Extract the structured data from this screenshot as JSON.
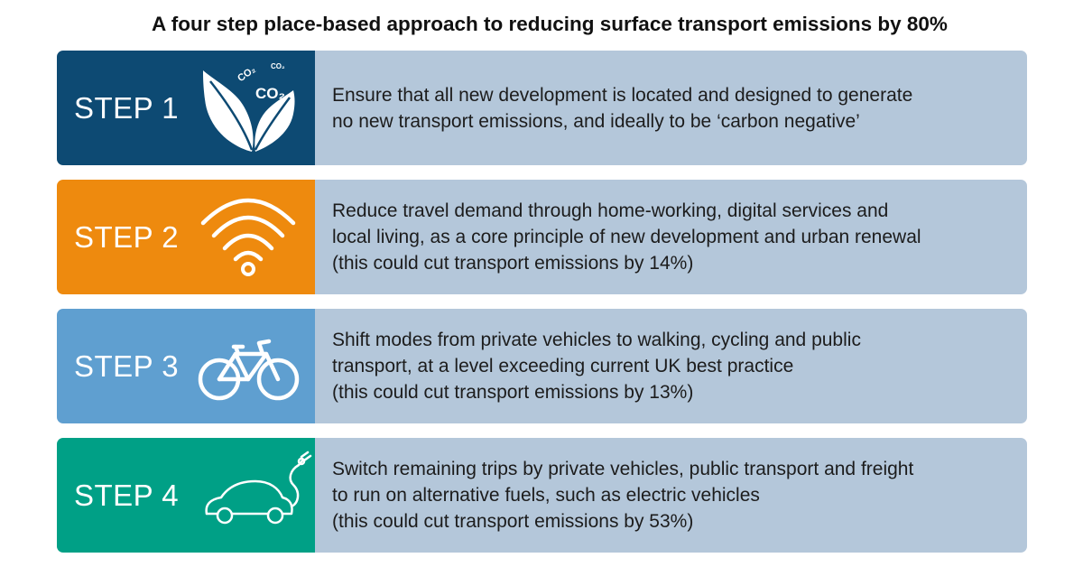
{
  "title": "A four step place-based approach to reducing surface transport emissions by 80%",
  "steps": [
    {
      "label": "STEP 1",
      "color": "#0d4a73",
      "icon": "leaf-co2-icon",
      "lines": [
        "Ensure that all new development is located and designed to generate",
        "no new transport emissions, and ideally to be ‘carbon negative’"
      ]
    },
    {
      "label": "STEP 2",
      "color": "#ee8a0e",
      "icon": "wifi-icon",
      "lines": [
        "Reduce travel demand through home-working, digital services and",
        "local living, as a core principle of new development and urban renewal",
        "(this could cut transport emissions by 14%)"
      ]
    },
    {
      "label": "STEP 3",
      "color": "#5f9fd0",
      "icon": "bicycle-icon",
      "lines": [
        "Shift modes from private vehicles to walking, cycling and public",
        "transport, at a level exceeding current UK best practice",
        "(this could cut transport emissions by 13%)"
      ]
    },
    {
      "label": "STEP 4",
      "color": "#00a086",
      "icon": "electric-car-icon",
      "lines": [
        "Switch remaining trips by private vehicles, public transport and freight",
        "to run on alternative fuels, such as electric vehicles",
        "(this could cut transport emissions by 53%)"
      ]
    }
  ],
  "icons": {
    "co2_labels": [
      "CO₂",
      "CO₂",
      "CO₂"
    ]
  }
}
